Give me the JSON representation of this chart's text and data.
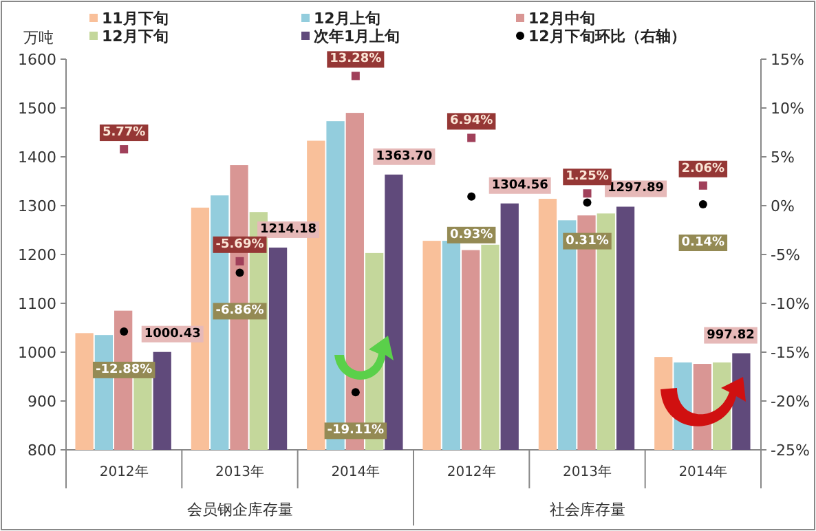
{
  "chart_data": {
    "type": "bar",
    "ylabel": "万吨",
    "categories": [
      "2012年",
      "2013年",
      "2014年",
      "2012年",
      "2013年",
      "2014年"
    ],
    "annotations": [
      "会员钢企库存量",
      "社会库存量"
    ],
    "series": [
      {
        "name": "11月下旬",
        "color": "#f9c09a",
        "values": [
          1039,
          1296,
          1433,
          1228,
          1314,
          990
        ]
      },
      {
        "name": "12月上旬",
        "color": "#93cddd",
        "values": [
          1035,
          1321,
          1473,
          1228,
          1270,
          979
        ]
      },
      {
        "name": "12月中旬",
        "color": "#d99694",
        "values": [
          1085,
          1383,
          1490,
          1209,
          1280,
          976
        ]
      },
      {
        "name": "12月下旬",
        "color": "#c4d79b",
        "values": [
          948,
          1287,
          1203,
          1220,
          1284,
          979
        ]
      },
      {
        "name": "次年1月上旬",
        "color": "#604a7b",
        "values": [
          1000.43,
          1214.18,
          1363.7,
          1304.56,
          1297.89,
          997.82
        ],
        "value_labels": [
          "1000.43",
          "1214.18",
          "1363.70",
          "1304.56",
          "1297.89",
          "997.82"
        ]
      },
      {
        "name": "12月下旬环比（右轴）",
        "type": "scatter",
        "axis": "y2",
        "marker": "circle",
        "color": "#000000",
        "values": [
          -12.88,
          -6.86,
          -19.11,
          0.93,
          0.31,
          0.14
        ],
        "value_labels": [
          "-12.88%",
          "-6.86%",
          "-19.11%",
          "0.93%",
          "0.31%",
          "0.14%"
        ]
      },
      {
        "type": "scatter",
        "axis": "y2",
        "marker": "square",
        "color": "#a0405a",
        "values": [
          5.77,
          -5.69,
          13.28,
          6.94,
          1.25,
          2.06
        ],
        "value_labels": [
          "5.77%",
          "-5.69%",
          "13.28%",
          "6.94%",
          "1.25%",
          "2.06%"
        ]
      }
    ],
    "ylim": [
      800,
      1600
    ],
    "yticks": [
      800,
      900,
      1000,
      1100,
      1200,
      1300,
      1400,
      1500,
      1600
    ],
    "y2lim": [
      -25,
      15
    ],
    "y2ticks": [
      {
        "value": 15,
        "label": "15%"
      },
      {
        "value": 10,
        "label": "10%"
      },
      {
        "value": 5,
        "label": "5%"
      },
      {
        "value": 0,
        "label": "0%"
      },
      {
        "value": -5,
        "label": "-5%"
      },
      {
        "value": -10,
        "label": "-10%"
      },
      {
        "value": -15,
        "label": "-15%"
      },
      {
        "value": -20,
        "label": "-20%"
      },
      {
        "value": -25,
        "label": "-25%"
      }
    ],
    "grid": false,
    "legend": "top"
  }
}
